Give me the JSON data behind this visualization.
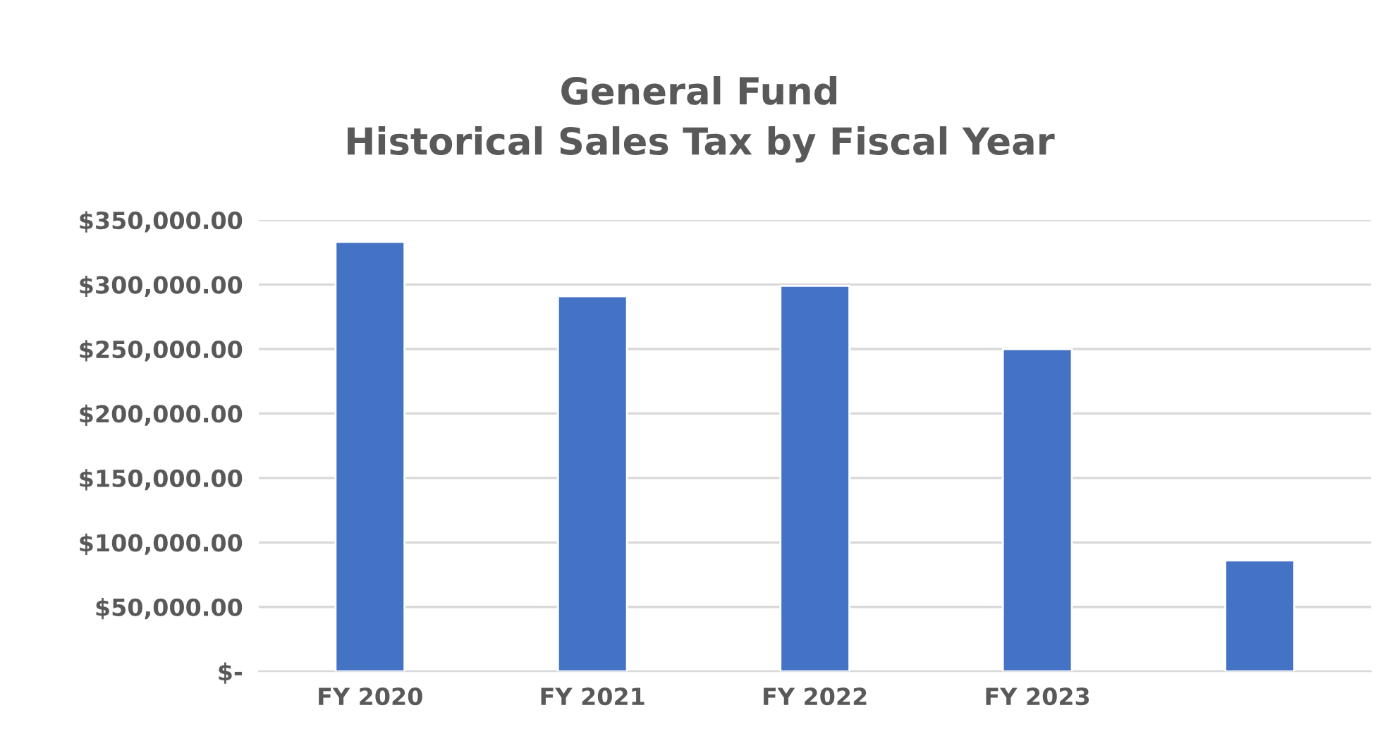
{
  "chart_data": {
    "type": "bar",
    "title": "General Fund\nHistorical Sales Tax by Fiscal Year",
    "categories": [
      "FY 2020",
      "FY 2021",
      "FY 2022",
      "FY 2023",
      null
    ],
    "values": [
      333000,
      291000,
      299000,
      250000,
      86000
    ],
    "color": "#4472c4",
    "ylim": [
      0,
      350000
    ],
    "yticks": [
      {
        "value": 0,
        "label": "$-"
      },
      {
        "value": 50000,
        "label": "$50,000.00"
      },
      {
        "value": 100000,
        "label": "$100,000.00"
      },
      {
        "value": 150000,
        "label": "$150,000.00"
      },
      {
        "value": 200000,
        "label": "$200,000.00"
      },
      {
        "value": 250000,
        "label": "$250,000.00"
      },
      {
        "value": 300000,
        "label": "$300,000.00"
      },
      {
        "value": 350000,
        "label": "$350,000.00"
      }
    ],
    "grid": "y"
  }
}
